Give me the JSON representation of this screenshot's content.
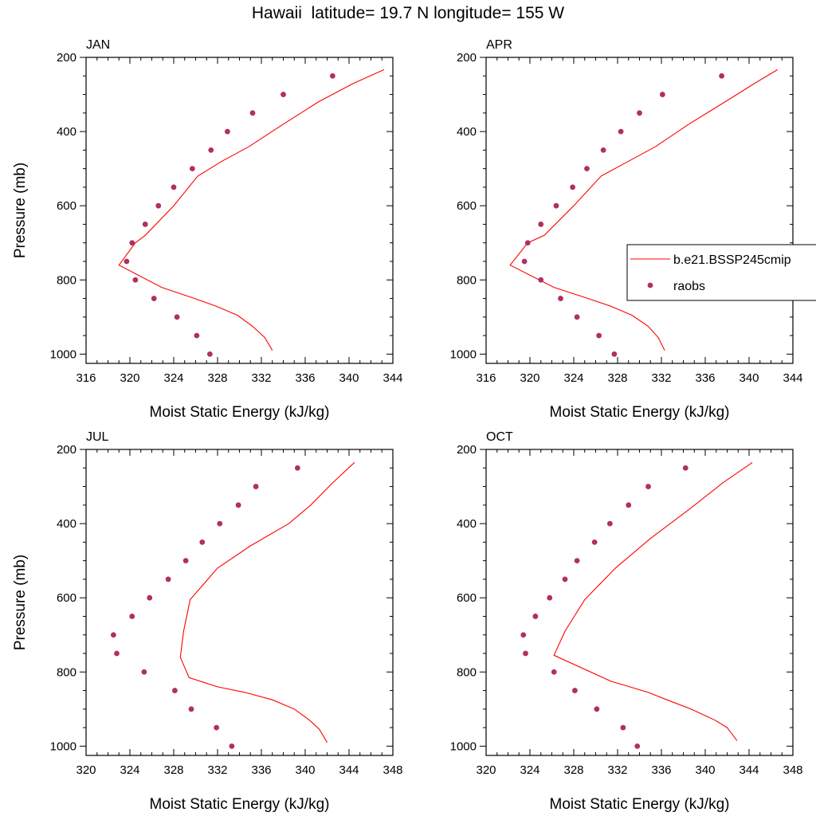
{
  "title": "Hawaii  latitude= 19.7 N longitude= 155 W",
  "colors": {
    "model": "#ff0000",
    "obs": "#b03060",
    "axis": "#000000"
  },
  "legend": {
    "items": [
      {
        "label": "b.e21.BSSP245cmip",
        "marker": "line"
      },
      {
        "label": "raobs",
        "marker": "dot"
      }
    ]
  },
  "chart_data": [
    {
      "type": "line",
      "panel_title": "JAN",
      "xlabel": "Moist Static Energy (kJ/kg)",
      "ylabel": "Pressure (mb)",
      "xlim": [
        316,
        344
      ],
      "ylim": [
        1025,
        200
      ],
      "xticks": [
        316,
        320,
        324,
        328,
        332,
        336,
        340,
        344
      ],
      "yticks": [
        200,
        400,
        600,
        800,
        1000
      ],
      "series": [
        {
          "name": "b.e21.BSSP245cmip",
          "kind": "line",
          "x": [
            333.0,
            332.3,
            331.2,
            329.8,
            327.8,
            325.7,
            322.9,
            319.0,
            320.5,
            321.4,
            324.0,
            326.2,
            328.4,
            330.9,
            334.0,
            337.2,
            340.4,
            343.2
          ],
          "y": [
            990,
            955,
            925,
            895,
            870,
            848,
            820,
            760,
            700,
            680,
            600,
            520,
            480,
            440,
            380,
            320,
            270,
            233
          ]
        },
        {
          "name": "raobs",
          "kind": "scatter",
          "x": [
            327.3,
            326.1,
            324.3,
            322.2,
            320.5,
            319.7,
            320.2,
            321.4,
            322.6,
            324.0,
            325.7,
            327.4,
            328.9,
            331.2,
            334.0,
            338.5
          ],
          "y": [
            1000,
            950,
            900,
            850,
            800,
            750,
            700,
            650,
            600,
            550,
            500,
            450,
            400,
            350,
            300,
            250
          ]
        }
      ]
    },
    {
      "type": "line",
      "panel_title": "APR",
      "xlabel": "Moist Static Energy (kJ/kg)",
      "ylabel": "",
      "xlim": [
        316,
        344
      ],
      "ylim": [
        1025,
        200
      ],
      "xticks": [
        316,
        320,
        324,
        328,
        332,
        336,
        340,
        344
      ],
      "yticks": [
        200,
        400,
        600,
        800,
        1000
      ],
      "series": [
        {
          "name": "b.e21.BSSP245cmip",
          "kind": "line",
          "x": [
            332.3,
            331.7,
            330.8,
            329.3,
            327.3,
            325.1,
            322.2,
            318.2,
            319.8,
            321.3,
            324.0,
            326.5,
            329.0,
            331.5,
            334.5,
            337.8,
            340.5,
            342.6
          ],
          "y": [
            990,
            955,
            925,
            895,
            870,
            848,
            820,
            760,
            700,
            680,
            600,
            520,
            480,
            440,
            380,
            320,
            270,
            233
          ]
        },
        {
          "name": "raobs",
          "kind": "scatter",
          "x": [
            327.7,
            326.3,
            324.3,
            322.8,
            321.0,
            319.5,
            319.8,
            321.0,
            322.4,
            323.9,
            325.2,
            326.7,
            328.3,
            330.0,
            332.1,
            337.5
          ],
          "y": [
            1000,
            950,
            900,
            850,
            800,
            750,
            700,
            650,
            600,
            550,
            500,
            450,
            400,
            350,
            300,
            250
          ]
        }
      ]
    },
    {
      "type": "line",
      "panel_title": "JUL",
      "xlabel": "Moist Static Energy (kJ/kg)",
      "ylabel": "Pressure (mb)",
      "xlim": [
        320,
        348
      ],
      "ylim": [
        1025,
        200
      ],
      "xticks": [
        320,
        324,
        328,
        332,
        336,
        340,
        344,
        348
      ],
      "yticks": [
        200,
        400,
        600,
        800,
        1000
      ],
      "series": [
        {
          "name": "b.e21.BSSP245cmip",
          "kind": "line",
          "x": [
            342.0,
            341.3,
            340.4,
            339.0,
            337.0,
            334.5,
            332.0,
            329.4,
            328.6,
            328.9,
            329.5,
            332.0,
            335.0,
            338.5,
            340.5,
            342.5,
            344.5
          ],
          "y": [
            990,
            955,
            930,
            900,
            875,
            855,
            840,
            815,
            760,
            690,
            605,
            520,
            460,
            400,
            350,
            290,
            235
          ]
        },
        {
          "name": "raobs",
          "kind": "scatter",
          "x": [
            333.3,
            331.9,
            329.6,
            328.1,
            325.3,
            322.8,
            322.5,
            324.2,
            325.8,
            327.5,
            329.1,
            330.6,
            332.2,
            333.9,
            335.5,
            339.3
          ],
          "y": [
            1000,
            950,
            900,
            850,
            800,
            750,
            700,
            650,
            600,
            550,
            500,
            450,
            400,
            350,
            300,
            250
          ]
        }
      ]
    },
    {
      "type": "line",
      "panel_title": "OCT",
      "xlabel": "Moist Static Energy (kJ/kg)",
      "ylabel": "",
      "xlim": [
        320,
        348
      ],
      "ylim": [
        1025,
        200
      ],
      "xticks": [
        320,
        324,
        328,
        332,
        336,
        340,
        344,
        348
      ],
      "yticks": [
        200,
        400,
        600,
        800,
        1000
      ],
      "series": [
        {
          "name": "b.e21.BSSP245cmip",
          "kind": "line",
          "x": [
            342.9,
            342.0,
            340.9,
            338.7,
            336.5,
            334.8,
            331.4,
            326.2,
            327.2,
            329.0,
            331.8,
            335.0,
            338.6,
            341.6,
            344.3
          ],
          "y": [
            985,
            950,
            930,
            900,
            875,
            855,
            825,
            755,
            690,
            605,
            520,
            440,
            360,
            290,
            235
          ]
        },
        {
          "name": "raobs",
          "kind": "scatter",
          "x": [
            333.8,
            332.5,
            330.1,
            328.1,
            326.2,
            323.6,
            323.4,
            324.5,
            325.8,
            327.2,
            328.3,
            329.9,
            331.3,
            333.0,
            334.8,
            338.2
          ],
          "y": [
            1000,
            950,
            900,
            850,
            800,
            750,
            700,
            650,
            600,
            550,
            500,
            450,
            400,
            350,
            300,
            250
          ]
        }
      ]
    }
  ]
}
